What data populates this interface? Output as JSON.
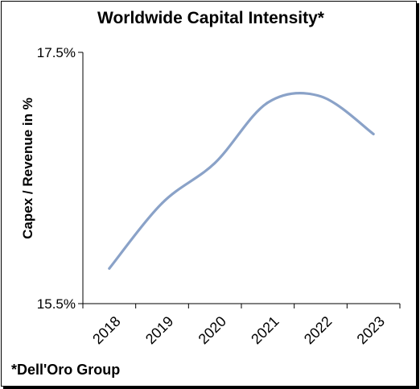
{
  "chart_data": {
    "type": "line",
    "title": "Worldwide Capital Intensity*",
    "ylabel": "Capex / Revenue in %",
    "xlabel": "",
    "ylim": [
      15.5,
      17.5
    ],
    "y_ticks": [
      "15.5%",
      "17.5%"
    ],
    "x": [
      "2018",
      "2019",
      "2020",
      "2021",
      "2022",
      "2023"
    ],
    "series": [
      {
        "values": [
          15.78,
          16.3,
          16.62,
          17.1,
          17.15,
          16.85
        ]
      }
    ],
    "line_color": "#8aa2c8",
    "grid": false,
    "source_note": "*Dell'Oro Group"
  }
}
